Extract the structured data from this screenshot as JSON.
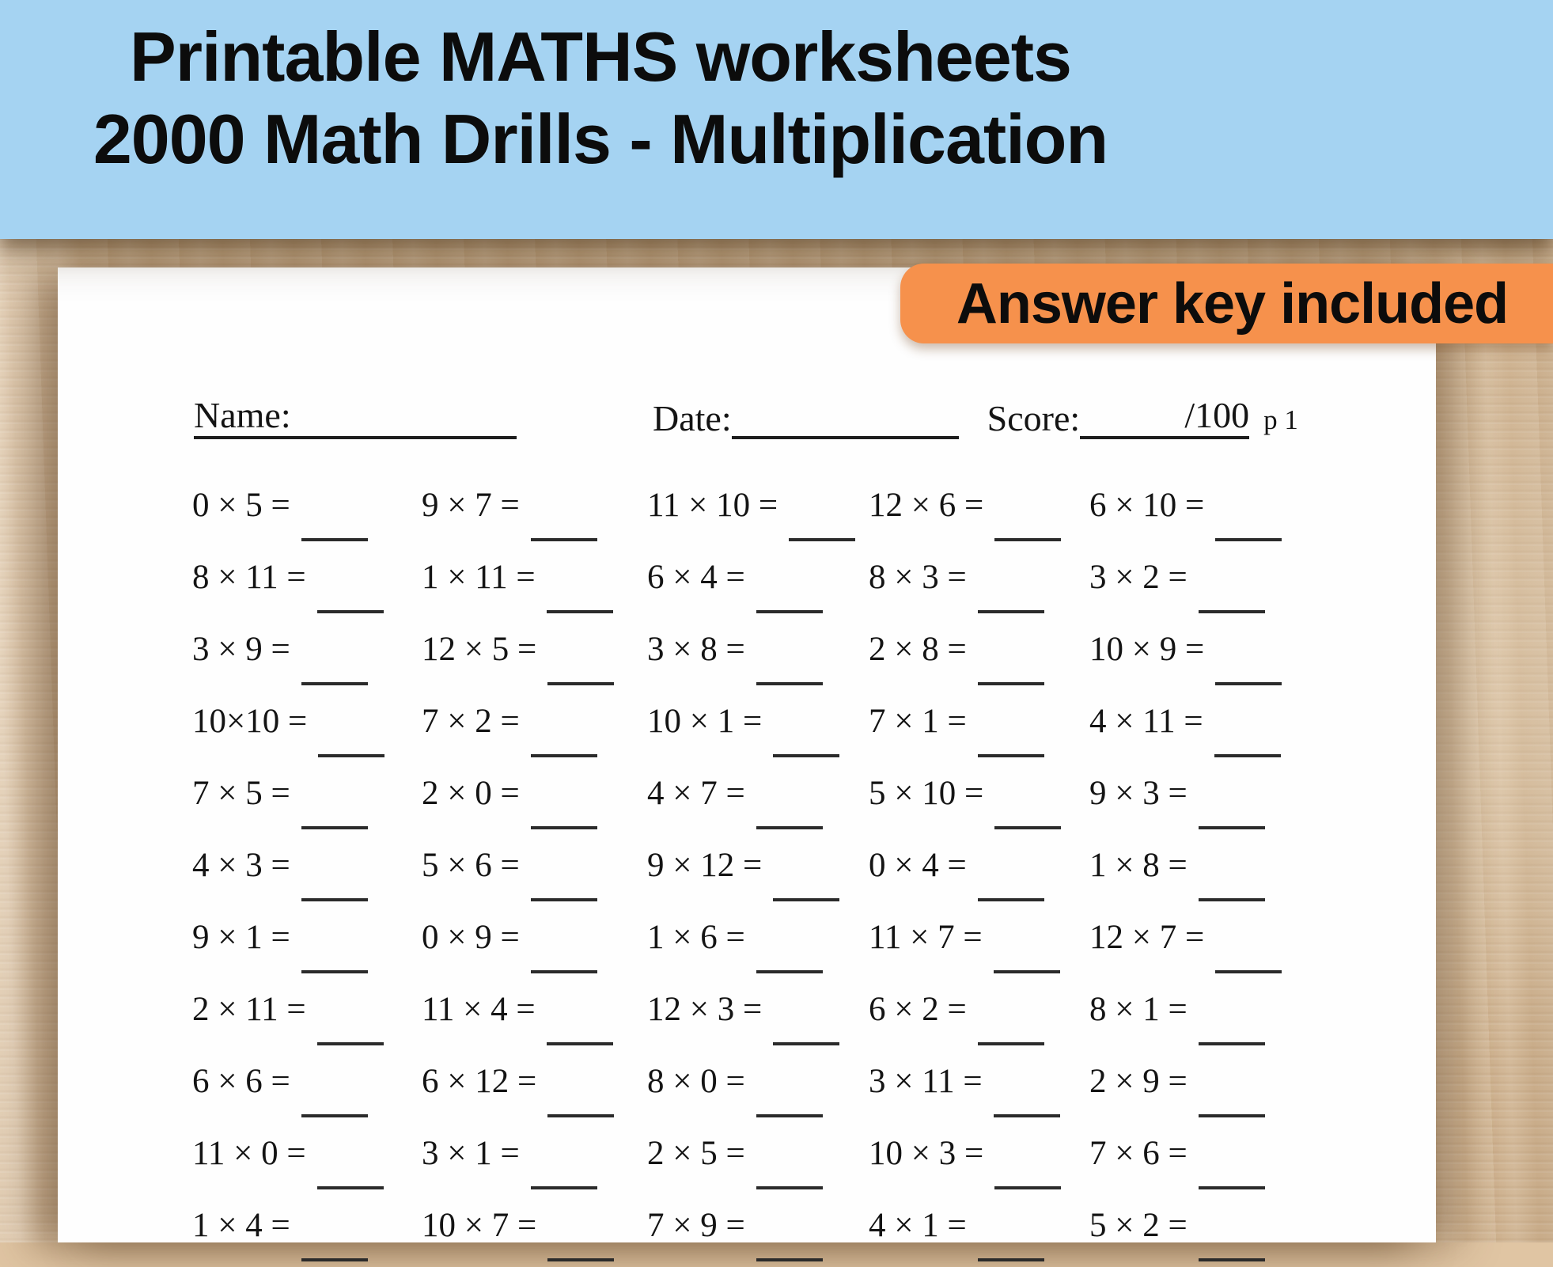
{
  "banner": {
    "line1": "Printable MATHS worksheets",
    "line2": "2000 Math Drills - Multiplication"
  },
  "badge": {
    "label": "Answer key included"
  },
  "worksheet": {
    "name_label": "Name:",
    "date_label": "Date:",
    "score_label": "Score:",
    "score_total": "/100",
    "page_label": "p 1",
    "problems": [
      [
        "0 × 5 =",
        "9 × 7 =",
        "11 × 10 =",
        "12 × 6 =",
        "6 × 10 ="
      ],
      [
        "8 × 11 =",
        "1 × 11 =",
        "6 × 4 =",
        "8 × 3 =",
        "3 × 2 ="
      ],
      [
        "3 × 9 =",
        "12 × 5 =",
        "3 × 8 =",
        "2 × 8 =",
        "10 × 9 ="
      ],
      [
        "10×10 =",
        "7 × 2 =",
        "10 × 1 =",
        "7 × 1 =",
        "4 × 11 ="
      ],
      [
        "7 × 5 =",
        "2 × 0 =",
        "4 × 7 =",
        "5 × 10 =",
        "9 × 3 ="
      ],
      [
        "4 × 3 =",
        "5 × 6 =",
        "9 × 12 =",
        "0 × 4 =",
        "1 × 8 ="
      ],
      [
        "9 × 1 =",
        "0 × 9 =",
        "1 × 6 =",
        "11 × 7 =",
        "12 × 7 ="
      ],
      [
        "2 × 11 =",
        "11 × 4 =",
        "12 × 3 =",
        "6 × 2 =",
        "8 × 1 ="
      ],
      [
        "6 × 6 =",
        "6 × 12 =",
        "8 × 0 =",
        "3 × 11 =",
        "2 × 9 ="
      ],
      [
        "11 × 0 =",
        "3 × 1 =",
        "2 × 5 =",
        "10 × 3 =",
        "7 × 6 ="
      ],
      [
        "1 × 4 =",
        "10 × 7 =",
        "7 × 9 =",
        "4 × 1 =",
        "5 × 2 ="
      ]
    ]
  },
  "colors": {
    "banner_bg": "#a5d3f2",
    "badge_bg": "#f6914c",
    "wood": "#e0c5a3",
    "paper": "#fefefe",
    "ink": "#141414"
  }
}
